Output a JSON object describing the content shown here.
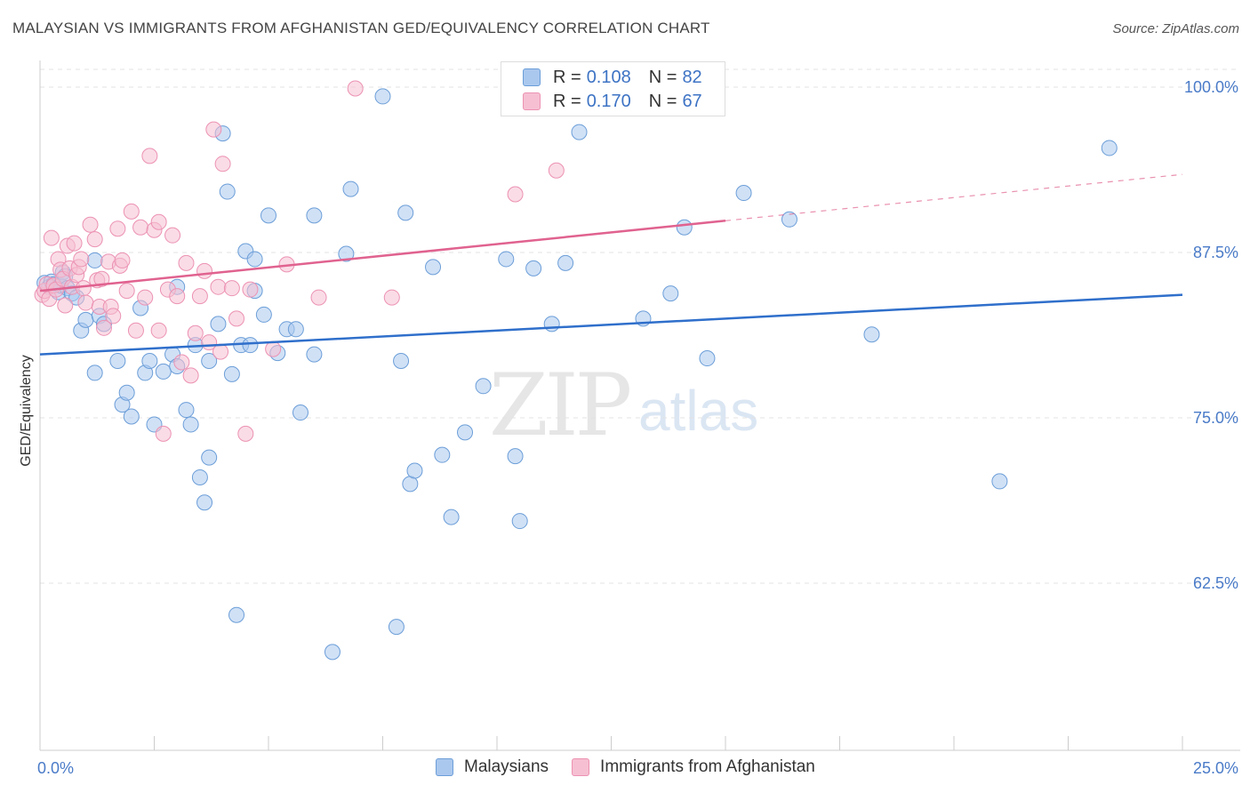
{
  "title": "MALAYSIAN VS IMMIGRANTS FROM AFGHANISTAN GED/EQUIVALENCY CORRELATION CHART",
  "source": "Source: ZipAtlas.com",
  "watermark_zip": "ZIP",
  "watermark_atlas": "atlas",
  "colors": {
    "blue_fill": "#aac8ee",
    "blue_stroke": "#6c9ed8",
    "blue_line": "#2f6fcb",
    "pink_fill": "#f6bfd2",
    "pink_stroke": "#ec92b3",
    "pink_line": "#e0628f",
    "tick_text": "#4a7bc8",
    "grid": "#e3e3e3"
  },
  "legend": {
    "rows": [
      {
        "r_label": "R =",
        "r_value": "0.108",
        "n_label": "N =",
        "n_value": "82",
        "color": "#aac8ee",
        "border": "#6c9ed8"
      },
      {
        "r_label": "R =",
        "r_value": "0.170",
        "n_label": "N =",
        "n_value": "67",
        "color": "#f6bfd2",
        "border": "#ec92b3"
      }
    ]
  },
  "bottom_legend": {
    "items": [
      {
        "label": "Malaysians",
        "color": "#aac8ee",
        "border": "#6c9ed8"
      },
      {
        "label": "Immigrants from Afghanistan",
        "color": "#f6bfd2",
        "border": "#ec92b3"
      }
    ]
  },
  "chart_data": {
    "type": "scatter",
    "title": "MALAYSIAN VS IMMIGRANTS FROM AFGHANISTAN GED/EQUIVALENCY CORRELATION CHART",
    "xlabel": "",
    "ylabel": "GED/Equivalency",
    "xlim": [
      0,
      25
    ],
    "ylim": [
      50,
      100
    ],
    "x_tick_labels": [
      "0.0%",
      "25.0%"
    ],
    "y_ticks": [
      62.5,
      75.0,
      87.5,
      100.0
    ],
    "y_tick_labels": [
      "62.5%",
      "75.0%",
      "87.5%",
      "100.0%"
    ],
    "grid": true,
    "legend_position": "top-center",
    "series": [
      {
        "name": "Malaysians",
        "r": 0.108,
        "n": 82,
        "trend": {
          "x0": 0.0,
          "y0": 79.8,
          "x1": 25.0,
          "y1": 84.3
        },
        "points": [
          [
            0.1,
            85.2
          ],
          [
            0.2,
            84.9
          ],
          [
            0.25,
            85.3
          ],
          [
            0.3,
            85.1
          ],
          [
            0.4,
            84.5
          ],
          [
            0.45,
            85.0
          ],
          [
            0.5,
            86.0
          ],
          [
            0.55,
            85.7
          ],
          [
            0.6,
            84.8
          ],
          [
            0.7,
            84.4
          ],
          [
            0.8,
            84.1
          ],
          [
            0.9,
            81.6
          ],
          [
            1.0,
            82.4
          ],
          [
            1.2,
            86.9
          ],
          [
            1.3,
            82.7
          ],
          [
            1.4,
            82.1
          ],
          [
            1.2,
            78.4
          ],
          [
            1.7,
            79.3
          ],
          [
            1.8,
            76.0
          ],
          [
            1.9,
            76.9
          ],
          [
            2.0,
            75.1
          ],
          [
            2.2,
            83.3
          ],
          [
            2.3,
            78.4
          ],
          [
            2.4,
            79.3
          ],
          [
            2.5,
            74.5
          ],
          [
            2.7,
            78.5
          ],
          [
            2.9,
            79.8
          ],
          [
            3.0,
            78.9
          ],
          [
            3.0,
            84.9
          ],
          [
            3.2,
            75.6
          ],
          [
            3.3,
            74.5
          ],
          [
            3.4,
            80.5
          ],
          [
            3.5,
            70.5
          ],
          [
            3.6,
            68.6
          ],
          [
            3.7,
            79.3
          ],
          [
            3.7,
            72.0
          ],
          [
            3.9,
            82.1
          ],
          [
            4.0,
            96.5
          ],
          [
            4.1,
            92.1
          ],
          [
            4.2,
            78.3
          ],
          [
            4.3,
            60.1
          ],
          [
            4.4,
            80.5
          ],
          [
            4.5,
            87.6
          ],
          [
            4.6,
            80.5
          ],
          [
            4.7,
            84.6
          ],
          [
            4.7,
            87.0
          ],
          [
            4.9,
            82.8
          ],
          [
            5.0,
            90.3
          ],
          [
            5.2,
            79.9
          ],
          [
            5.4,
            81.7
          ],
          [
            5.6,
            81.7
          ],
          [
            5.7,
            75.4
          ],
          [
            6.0,
            90.3
          ],
          [
            6.0,
            79.8
          ],
          [
            6.4,
            57.3
          ],
          [
            6.7,
            87.4
          ],
          [
            6.8,
            92.3
          ],
          [
            7.5,
            99.3
          ],
          [
            7.8,
            59.2
          ],
          [
            7.9,
            79.3
          ],
          [
            8.0,
            90.5
          ],
          [
            8.1,
            70.0
          ],
          [
            8.2,
            71.0
          ],
          [
            8.6,
            86.4
          ],
          [
            8.8,
            72.2
          ],
          [
            9.0,
            67.5
          ],
          [
            9.3,
            73.9
          ],
          [
            9.7,
            77.4
          ],
          [
            10.2,
            87.0
          ],
          [
            10.4,
            72.1
          ],
          [
            10.5,
            67.2
          ],
          [
            10.8,
            86.3
          ],
          [
            11.2,
            82.1
          ],
          [
            11.5,
            86.7
          ],
          [
            11.8,
            96.6
          ],
          [
            13.2,
            82.5
          ],
          [
            13.8,
            84.4
          ],
          [
            14.1,
            89.4
          ],
          [
            14.6,
            79.5
          ],
          [
            15.4,
            92.0
          ],
          [
            16.4,
            90.0
          ],
          [
            18.2,
            81.3
          ],
          [
            21.0,
            70.2
          ],
          [
            23.4,
            95.4
          ]
        ]
      },
      {
        "name": "Immigrants from Afghanistan",
        "r": 0.17,
        "n": 67,
        "trend": {
          "x0": 0.0,
          "y0": 84.6,
          "x1": 15.0,
          "y1": 89.9
        },
        "trend_dashed_to": {
          "x": 25.0,
          "y": 93.4
        },
        "points": [
          [
            0.05,
            84.3
          ],
          [
            0.1,
            84.6
          ],
          [
            0.15,
            85.1
          ],
          [
            0.2,
            84.0
          ],
          [
            0.25,
            88.6
          ],
          [
            0.3,
            85.0
          ],
          [
            0.35,
            84.7
          ],
          [
            0.4,
            87.0
          ],
          [
            0.45,
            86.2
          ],
          [
            0.5,
            85.5
          ],
          [
            0.55,
            83.5
          ],
          [
            0.6,
            88.0
          ],
          [
            0.65,
            86.3
          ],
          [
            0.7,
            84.9
          ],
          [
            0.75,
            88.2
          ],
          [
            0.8,
            85.8
          ],
          [
            0.85,
            86.4
          ],
          [
            0.9,
            87.0
          ],
          [
            0.95,
            84.8
          ],
          [
            1.0,
            83.7
          ],
          [
            1.1,
            89.6
          ],
          [
            1.2,
            88.5
          ],
          [
            1.25,
            85.4
          ],
          [
            1.3,
            83.4
          ],
          [
            1.35,
            85.5
          ],
          [
            1.4,
            81.8
          ],
          [
            1.5,
            86.8
          ],
          [
            1.55,
            83.4
          ],
          [
            1.6,
            82.7
          ],
          [
            1.7,
            89.3
          ],
          [
            1.75,
            86.5
          ],
          [
            1.8,
            86.9
          ],
          [
            1.9,
            84.6
          ],
          [
            2.0,
            90.6
          ],
          [
            2.1,
            81.6
          ],
          [
            2.2,
            89.4
          ],
          [
            2.3,
            84.1
          ],
          [
            2.4,
            94.8
          ],
          [
            2.5,
            89.2
          ],
          [
            2.6,
            81.6
          ],
          [
            2.6,
            89.8
          ],
          [
            2.7,
            73.8
          ],
          [
            2.8,
            84.7
          ],
          [
            2.9,
            88.8
          ],
          [
            3.0,
            84.2
          ],
          [
            3.1,
            79.2
          ],
          [
            3.2,
            86.7
          ],
          [
            3.3,
            78.2
          ],
          [
            3.4,
            81.4
          ],
          [
            3.5,
            84.2
          ],
          [
            3.6,
            86.1
          ],
          [
            3.7,
            80.7
          ],
          [
            3.8,
            96.8
          ],
          [
            3.9,
            84.9
          ],
          [
            3.95,
            80.0
          ],
          [
            4.0,
            94.2
          ],
          [
            4.2,
            84.8
          ],
          [
            4.3,
            82.5
          ],
          [
            4.5,
            73.8
          ],
          [
            4.6,
            84.7
          ],
          [
            5.1,
            80.2
          ],
          [
            5.4,
            86.6
          ],
          [
            6.1,
            84.1
          ],
          [
            6.9,
            99.9
          ],
          [
            7.7,
            84.1
          ],
          [
            10.4,
            91.9
          ],
          [
            11.3,
            93.7
          ]
        ]
      }
    ]
  }
}
